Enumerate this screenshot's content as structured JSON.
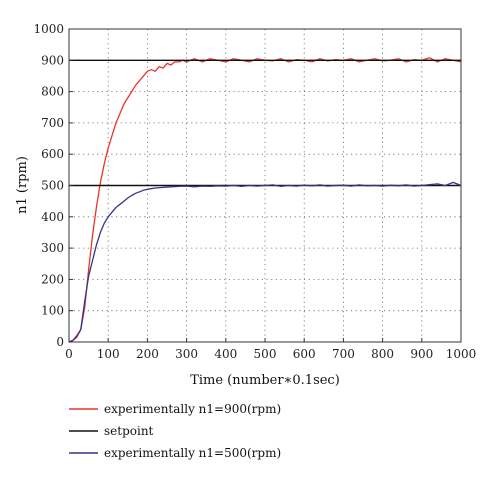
{
  "chart_data": {
    "type": "line",
    "xlabel": "Time (number∗0.1sec)",
    "ylabel": "n1 (rpm)",
    "xlim": [
      0,
      1000
    ],
    "ylim": [
      0,
      1000
    ],
    "xticks": [
      0,
      100,
      200,
      300,
      400,
      500,
      600,
      700,
      800,
      900,
      1000
    ],
    "yticks": [
      0,
      100,
      200,
      300,
      400,
      500,
      600,
      700,
      800,
      900,
      1000
    ],
    "grid": true,
    "legend_position": "bottom",
    "series": [
      {
        "name": "experimentally n1=900(rpm)",
        "color": "#e8352a",
        "x": [
          0,
          10,
          20,
          30,
          40,
          50,
          60,
          70,
          80,
          90,
          100,
          110,
          120,
          130,
          140,
          150,
          160,
          170,
          180,
          190,
          200,
          210,
          220,
          230,
          240,
          250,
          260,
          270,
          280,
          290,
          300,
          320,
          340,
          360,
          380,
          400,
          420,
          440,
          460,
          480,
          500,
          520,
          540,
          560,
          580,
          600,
          620,
          640,
          660,
          680,
          700,
          720,
          740,
          760,
          780,
          800,
          820,
          840,
          860,
          880,
          900,
          920,
          940,
          960,
          980,
          1000
        ],
        "y": [
          0,
          5,
          15,
          40,
          110,
          230,
          340,
          430,
          510,
          570,
          620,
          660,
          700,
          730,
          760,
          780,
          800,
          820,
          835,
          850,
          865,
          870,
          865,
          880,
          875,
          890,
          885,
          895,
          895,
          900,
          895,
          905,
          895,
          905,
          900,
          895,
          905,
          900,
          895,
          905,
          900,
          898,
          905,
          895,
          902,
          900,
          895,
          905,
          898,
          902,
          900,
          905,
          895,
          900,
          905,
          898,
          900,
          905,
          895,
          902,
          900,
          908,
          895,
          905,
          900,
          895
        ]
      },
      {
        "name": "setpoint",
        "color": "#111111",
        "lines": [
          900,
          500
        ]
      },
      {
        "name": "experimentally n1=500(rpm)",
        "color": "#35358a",
        "x": [
          0,
          10,
          20,
          30,
          40,
          50,
          60,
          70,
          80,
          90,
          100,
          110,
          120,
          130,
          140,
          150,
          160,
          170,
          180,
          190,
          200,
          220,
          240,
          260,
          280,
          300,
          320,
          340,
          360,
          380,
          400,
          420,
          440,
          460,
          480,
          500,
          520,
          540,
          560,
          580,
          600,
          620,
          640,
          660,
          680,
          700,
          720,
          740,
          760,
          780,
          800,
          820,
          840,
          860,
          880,
          900,
          920,
          940,
          960,
          980,
          1000
        ],
        "y": [
          0,
          5,
          20,
          40,
          130,
          210,
          260,
          310,
          350,
          380,
          400,
          415,
          430,
          440,
          450,
          460,
          468,
          475,
          480,
          485,
          488,
          492,
          494,
          496,
          497,
          498,
          496,
          498,
          497,
          499,
          498,
          500,
          497,
          500,
          498,
          500,
          502,
          497,
          500,
          498,
          501,
          499,
          502,
          498,
          500,
          501,
          498,
          502,
          499,
          500,
          498,
          501,
          499,
          502,
          498,
          500,
          503,
          505,
          500,
          510,
          500
        ]
      }
    ]
  }
}
